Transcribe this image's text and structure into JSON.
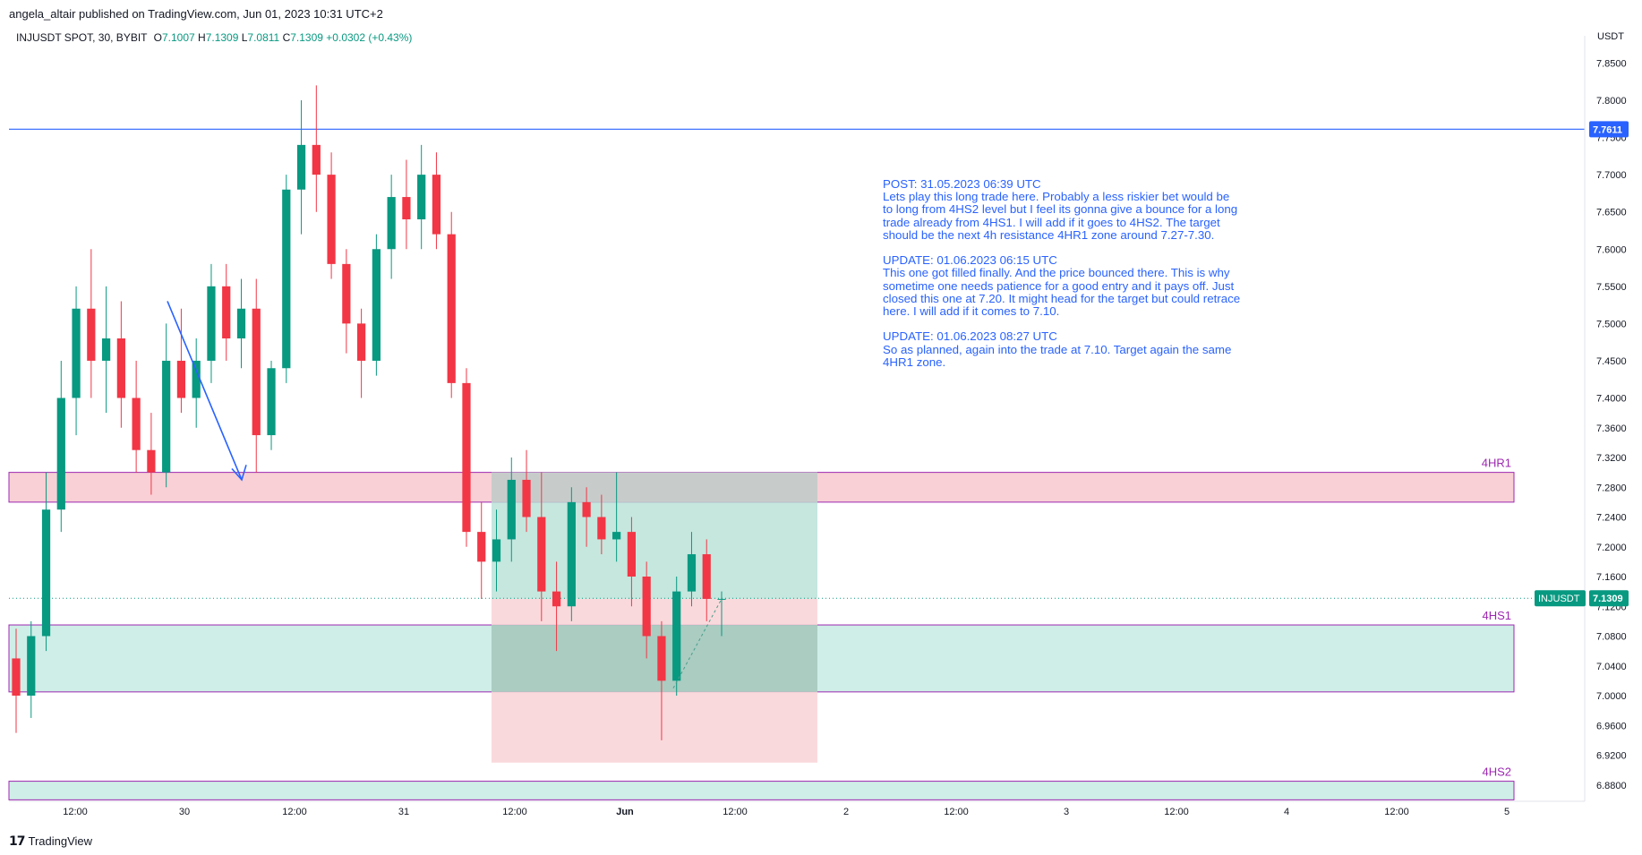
{
  "header": {
    "publisher_line": "angela_altair published on TradingView.com, Jun 01, 2023 10:31 UTC+2"
  },
  "legend": {
    "symbol": "INJUSDT SPOT, 30, BYBIT",
    "open_label": "O",
    "open": "7.1007",
    "high_label": "H",
    "high": "7.1309",
    "low_label": "L",
    "low": "7.0811",
    "close_label": "C",
    "close": "7.1309",
    "change": "+0.0302 (+0.43%)"
  },
  "footer": {
    "brand": "TradingView"
  },
  "annotation": {
    "text": "POST: 31.05.2023 06:39 UTC\nLets play this long trade here. Probably a less riskier bet would be to long from 4HS2 level but I feel its gonna give a bounce for a long trade already from 4HS1. I will add if it goes to 4HS2. The target should be the next 4h resistance 4HR1 zone around 7.27-7.30.\n\nUPDATE: 01.06.2023 06:15 UTC\nThis one got filled finally. And the price bounced there. This is why sometime one needs patience for a good entry and it pays off. Just closed this one at 7.20. It might head for the target but could retrace here. I will add if it comes to 7.10.\n\nUPDATE: 01.06.2023 08:27 UTC\nSo as planned, again into the trade at 7.10. Target again the same 4HR1 zone."
  },
  "colors": {
    "up": "#089981",
    "down": "#f23645",
    "resistance_fill": "#f8d0d5",
    "support_fill": "#cfeee7",
    "zone_border": "#9c27b0",
    "line_blue": "#2962ff",
    "target_fill": "#b2dfd3",
    "stop_fill": "#f9d2d6",
    "overlap_fill": "#c8c8c8"
  },
  "chart_data": {
    "type": "candlestick",
    "symbol": "INJUSDT",
    "interval": "30",
    "exchange": "BYBIT",
    "currency": "USDT",
    "y_axis": {
      "ticks": [
        "7.8500",
        "7.8000",
        "7.7500",
        "7.7000",
        "7.6500",
        "7.6000",
        "7.5500",
        "7.5000",
        "7.4500",
        "7.4000",
        "7.3600",
        "7.3200",
        "7.2800",
        "7.2400",
        "7.2000",
        "7.1600",
        "7.1200",
        "7.0800",
        "7.0400",
        "7.0000",
        "6.9600",
        "6.9200",
        "6.8800"
      ],
      "range": [
        6.86,
        7.95
      ]
    },
    "x_axis": {
      "ticks": [
        "12:00",
        "30",
        "12:00",
        "31",
        "12:00",
        "Jun",
        "12:00",
        "2",
        "12:00",
        "3",
        "12:00",
        "4",
        "12:00",
        "5"
      ]
    },
    "horizontal_line": {
      "price": 7.7611,
      "label": "7.7611"
    },
    "last_price": {
      "symbol": "INJUSDT",
      "price": 7.1309,
      "label": "7.1309"
    },
    "zones": [
      {
        "name": "4HR1",
        "top": 7.3,
        "bottom": 7.26
      },
      {
        "name": "4HS1",
        "top": 7.095,
        "bottom": 7.005
      },
      {
        "name": "4HS2",
        "top": 6.885,
        "bottom": 6.86
      }
    ],
    "position": {
      "type": "long",
      "entry": 7.13,
      "target": 7.3,
      "stop": 6.91
    },
    "candles_approx": [
      [
        7.05,
        7.09,
        6.95,
        7.0
      ],
      [
        7.0,
        7.1,
        6.97,
        7.08
      ],
      [
        7.08,
        7.3,
        7.06,
        7.25
      ],
      [
        7.25,
        7.45,
        7.22,
        7.4
      ],
      [
        7.4,
        7.55,
        7.35,
        7.52
      ],
      [
        7.52,
        7.6,
        7.4,
        7.45
      ],
      [
        7.45,
        7.55,
        7.38,
        7.48
      ],
      [
        7.48,
        7.53,
        7.36,
        7.4
      ],
      [
        7.4,
        7.45,
        7.3,
        7.33
      ],
      [
        7.33,
        7.38,
        7.27,
        7.3
      ],
      [
        7.3,
        7.5,
        7.28,
        7.45
      ],
      [
        7.45,
        7.52,
        7.38,
        7.4
      ],
      [
        7.4,
        7.48,
        7.36,
        7.45
      ],
      [
        7.45,
        7.58,
        7.42,
        7.55
      ],
      [
        7.55,
        7.58,
        7.45,
        7.48
      ],
      [
        7.48,
        7.56,
        7.44,
        7.52
      ],
      [
        7.52,
        7.56,
        7.3,
        7.35
      ],
      [
        7.35,
        7.45,
        7.33,
        7.44
      ],
      [
        7.44,
        7.7,
        7.42,
        7.68
      ],
      [
        7.68,
        7.8,
        7.62,
        7.74
      ],
      [
        7.74,
        7.82,
        7.65,
        7.7
      ],
      [
        7.7,
        7.73,
        7.56,
        7.58
      ],
      [
        7.58,
        7.6,
        7.46,
        7.5
      ],
      [
        7.5,
        7.52,
        7.4,
        7.45
      ],
      [
        7.45,
        7.62,
        7.43,
        7.6
      ],
      [
        7.6,
        7.7,
        7.56,
        7.67
      ],
      [
        7.67,
        7.72,
        7.6,
        7.64
      ],
      [
        7.64,
        7.74,
        7.6,
        7.7
      ],
      [
        7.7,
        7.73,
        7.6,
        7.62
      ],
      [
        7.62,
        7.65,
        7.4,
        7.42
      ],
      [
        7.42,
        7.44,
        7.2,
        7.22
      ],
      [
        7.22,
        7.26,
        7.13,
        7.18
      ],
      [
        7.18,
        7.25,
        7.14,
        7.21
      ],
      [
        7.21,
        7.32,
        7.18,
        7.29
      ],
      [
        7.29,
        7.33,
        7.22,
        7.24
      ],
      [
        7.24,
        7.3,
        7.1,
        7.14
      ],
      [
        7.14,
        7.18,
        7.06,
        7.12
      ],
      [
        7.12,
        7.28,
        7.1,
        7.26
      ],
      [
        7.26,
        7.28,
        7.2,
        7.24
      ],
      [
        7.24,
        7.27,
        7.19,
        7.21
      ],
      [
        7.21,
        7.3,
        7.18,
        7.22
      ],
      [
        7.22,
        7.24,
        7.12,
        7.16
      ],
      [
        7.16,
        7.18,
        7.05,
        7.08
      ],
      [
        7.08,
        7.1,
        6.94,
        7.02
      ],
      [
        7.02,
        7.16,
        7.0,
        7.14
      ],
      [
        7.14,
        7.22,
        7.12,
        7.19
      ],
      [
        7.19,
        7.21,
        7.1,
        7.13
      ],
      [
        7.13,
        7.14,
        7.08,
        7.13
      ]
    ]
  }
}
